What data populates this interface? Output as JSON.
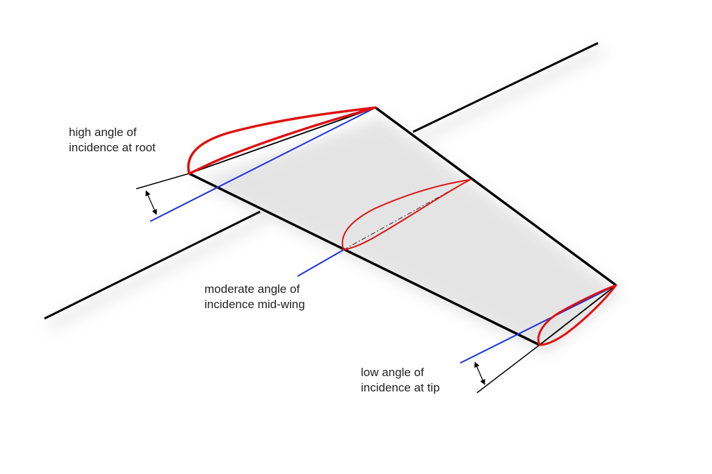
{
  "labels": {
    "root": [
      "high angle of",
      "incidence at root"
    ],
    "mid": [
      "moderate angle of",
      "incidence mid-wing"
    ],
    "tip": [
      "low angle of",
      "incidence at tip"
    ]
  },
  "colors": {
    "airfoil": "#e01010",
    "reference_line": "#1a2fe0",
    "structure": "#000000",
    "shadow": "#cfcfcf",
    "background": "#ffffff"
  }
}
